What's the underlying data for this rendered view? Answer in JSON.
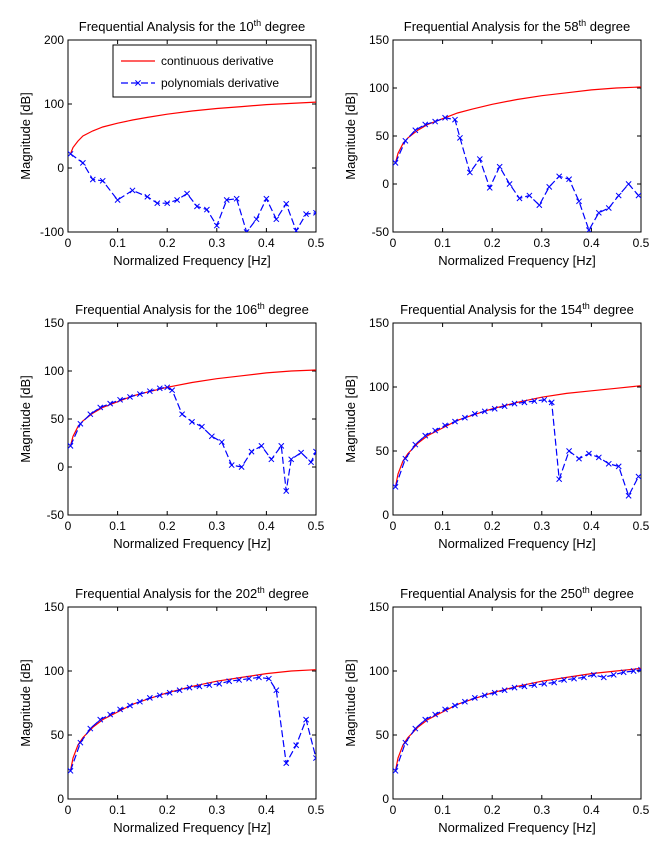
{
  "legend": {
    "entries": [
      {
        "label": "continuous derivative",
        "color": "#ff0000",
        "marker": "none"
      },
      {
        "label": "polynomials derivative",
        "color": "#0000ff",
        "marker": "x"
      }
    ],
    "placement": "top-right (first panel only)"
  },
  "chart_data": [
    {
      "type": "line",
      "title_prefix": "Frequential Analysis for the ",
      "title_degree": "10",
      "title_sup": "th",
      "title_suffix": " degree",
      "xlabel": "Normalized Frequency [Hz]",
      "ylabel": "Magnitude [dB]",
      "xlim": [
        0,
        0.5
      ],
      "ylim": [
        -100,
        200
      ],
      "xticks": [
        0,
        0.1,
        0.2,
        0.3,
        0.4,
        0.5
      ],
      "yticks": [
        -100,
        0,
        100,
        200
      ],
      "legend": true,
      "series": [
        {
          "name": "continuous derivative",
          "color": "#ff0000",
          "marker": "none",
          "x": [
            0.005,
            0.01,
            0.02,
            0.03,
            0.05,
            0.07,
            0.1,
            0.13,
            0.16,
            0.2,
            0.25,
            0.3,
            0.35,
            0.4,
            0.45,
            0.5
          ],
          "y": [
            22,
            32,
            42,
            50,
            58,
            64,
            70,
            75,
            79,
            84,
            89,
            93,
            96,
            99,
            101,
            103
          ]
        },
        {
          "name": "polynomials derivative",
          "color": "#0000ff",
          "marker": "x",
          "x": [
            0.005,
            0.03,
            0.05,
            0.07,
            0.1,
            0.13,
            0.16,
            0.18,
            0.2,
            0.22,
            0.24,
            0.26,
            0.28,
            0.3,
            0.32,
            0.34,
            0.36,
            0.38,
            0.4,
            0.42,
            0.44,
            0.46,
            0.48,
            0.5
          ],
          "y": [
            22,
            8,
            -18,
            -20,
            -50,
            -35,
            -45,
            -55,
            -55,
            -50,
            -40,
            -60,
            -65,
            -90,
            -50,
            -48,
            -100,
            -80,
            -48,
            -80,
            -56,
            -98,
            -72,
            -70
          ]
        }
      ]
    },
    {
      "type": "line",
      "title_prefix": "Frequential Analysis for the ",
      "title_degree": "58",
      "title_sup": "th",
      "title_suffix": " degree",
      "xlabel": "Normalized Frequency [Hz]",
      "ylabel": "Magnitude [dB]",
      "xlim": [
        0,
        0.5
      ],
      "ylim": [
        -50,
        150
      ],
      "xticks": [
        0,
        0.1,
        0.2,
        0.3,
        0.4,
        0.5
      ],
      "yticks": [
        -50,
        0,
        50,
        100,
        150
      ],
      "legend": false,
      "series": [
        {
          "name": "continuous derivative",
          "color": "#ff0000",
          "marker": "none",
          "x": [
            0.005,
            0.01,
            0.02,
            0.03,
            0.05,
            0.07,
            0.1,
            0.13,
            0.16,
            0.2,
            0.25,
            0.3,
            0.35,
            0.4,
            0.45,
            0.5
          ],
          "y": [
            22,
            32,
            42,
            48,
            56,
            62,
            68,
            74,
            78,
            83,
            88,
            92,
            95,
            98,
            100,
            101
          ]
        },
        {
          "name": "polynomials derivative",
          "color": "#0000ff",
          "marker": "x",
          "x": [
            0.005,
            0.025,
            0.045,
            0.065,
            0.085,
            0.105,
            0.125,
            0.135,
            0.155,
            0.175,
            0.195,
            0.215,
            0.235,
            0.255,
            0.275,
            0.295,
            0.315,
            0.335,
            0.355,
            0.375,
            0.395,
            0.415,
            0.435,
            0.455,
            0.475,
            0.495
          ],
          "y": [
            22,
            45,
            56,
            62,
            65,
            69,
            67,
            48,
            12,
            26,
            -4,
            18,
            0,
            -15,
            -12,
            -22,
            -3,
            8,
            5,
            -18,
            -48,
            -30,
            -25,
            -12,
            0,
            -12
          ]
        }
      ]
    },
    {
      "type": "line",
      "title_prefix": "Frequential Analysis for the ",
      "title_degree": "106",
      "title_sup": "th",
      "title_suffix": " degree",
      "xlabel": "Normalized Frequency [Hz]",
      "ylabel": "Magnitude [dB]",
      "xlim": [
        0,
        0.5
      ],
      "ylim": [
        -50,
        150
      ],
      "xticks": [
        0,
        0.1,
        0.2,
        0.3,
        0.4,
        0.5
      ],
      "yticks": [
        -50,
        0,
        50,
        100,
        150
      ],
      "legend": false,
      "series": [
        {
          "name": "continuous derivative",
          "color": "#ff0000",
          "marker": "none",
          "x": [
            0.005,
            0.01,
            0.02,
            0.03,
            0.05,
            0.07,
            0.1,
            0.13,
            0.16,
            0.2,
            0.25,
            0.3,
            0.35,
            0.4,
            0.45,
            0.5
          ],
          "y": [
            22,
            32,
            42,
            48,
            56,
            62,
            68,
            74,
            78,
            83,
            88,
            92,
            95,
            98,
            100,
            101
          ]
        },
        {
          "name": "polynomials derivative",
          "color": "#0000ff",
          "marker": "x",
          "x": [
            0.005,
            0.025,
            0.045,
            0.065,
            0.085,
            0.105,
            0.125,
            0.145,
            0.165,
            0.185,
            0.2,
            0.21,
            0.23,
            0.25,
            0.27,
            0.29,
            0.31,
            0.33,
            0.35,
            0.37,
            0.39,
            0.41,
            0.43,
            0.44,
            0.45,
            0.47,
            0.49,
            0.5
          ],
          "y": [
            22,
            45,
            55,
            62,
            66,
            70,
            73,
            76,
            79,
            82,
            83,
            80,
            55,
            47,
            42,
            32,
            26,
            2,
            0,
            16,
            22,
            8,
            22,
            -25,
            8,
            15,
            5,
            16
          ]
        }
      ]
    },
    {
      "type": "line",
      "title_prefix": "Frequential Analysis for the ",
      "title_degree": "154",
      "title_sup": "th",
      "title_suffix": " degree",
      "xlabel": "Normalized Frequency [Hz]",
      "ylabel": "Magnitude [dB]",
      "xlim": [
        0,
        0.5
      ],
      "ylim": [
        0,
        150
      ],
      "xticks": [
        0,
        0.1,
        0.2,
        0.3,
        0.4,
        0.5
      ],
      "yticks": [
        0,
        50,
        100,
        150
      ],
      "legend": false,
      "series": [
        {
          "name": "continuous derivative",
          "color": "#ff0000",
          "marker": "none",
          "x": [
            0.005,
            0.01,
            0.02,
            0.03,
            0.05,
            0.07,
            0.1,
            0.13,
            0.16,
            0.2,
            0.25,
            0.3,
            0.35,
            0.4,
            0.45,
            0.5
          ],
          "y": [
            22,
            32,
            42,
            48,
            56,
            62,
            68,
            74,
            78,
            83,
            88,
            92,
            95,
            97,
            99,
            101
          ]
        },
        {
          "name": "polynomials derivative",
          "color": "#0000ff",
          "marker": "x",
          "x": [
            0.005,
            0.025,
            0.045,
            0.065,
            0.085,
            0.105,
            0.125,
            0.145,
            0.165,
            0.185,
            0.205,
            0.225,
            0.245,
            0.265,
            0.285,
            0.305,
            0.32,
            0.335,
            0.355,
            0.375,
            0.395,
            0.415,
            0.435,
            0.455,
            0.475,
            0.495
          ],
          "y": [
            22,
            44,
            55,
            62,
            66,
            70,
            73,
            76,
            79,
            81,
            83,
            85,
            87,
            88,
            89,
            90,
            88,
            28,
            50,
            44,
            48,
            45,
            40,
            38,
            15,
            30
          ]
        }
      ]
    },
    {
      "type": "line",
      "title_prefix": "Frequential Analysis for the ",
      "title_degree": "202",
      "title_sup": "th",
      "title_suffix": " degree",
      "xlabel": "Normalized Frequency [Hz]",
      "ylabel": "Magnitude [dB]",
      "xlim": [
        0,
        0.5
      ],
      "ylim": [
        0,
        150
      ],
      "xticks": [
        0,
        0.1,
        0.2,
        0.3,
        0.4,
        0.5
      ],
      "yticks": [
        0,
        50,
        100,
        150
      ],
      "legend": false,
      "series": [
        {
          "name": "continuous derivative",
          "color": "#ff0000",
          "marker": "none",
          "x": [
            0.005,
            0.01,
            0.02,
            0.03,
            0.05,
            0.07,
            0.1,
            0.13,
            0.16,
            0.2,
            0.25,
            0.3,
            0.35,
            0.4,
            0.45,
            0.5
          ],
          "y": [
            22,
            32,
            42,
            48,
            56,
            62,
            68,
            74,
            78,
            83,
            88,
            92,
            95,
            98,
            100,
            101
          ]
        },
        {
          "name": "polynomials derivative",
          "color": "#0000ff",
          "marker": "x",
          "x": [
            0.005,
            0.025,
            0.045,
            0.065,
            0.085,
            0.105,
            0.125,
            0.145,
            0.165,
            0.185,
            0.205,
            0.225,
            0.245,
            0.265,
            0.285,
            0.305,
            0.325,
            0.345,
            0.365,
            0.385,
            0.405,
            0.42,
            0.44,
            0.46,
            0.48,
            0.5
          ],
          "y": [
            22,
            44,
            55,
            62,
            66,
            70,
            73,
            76,
            79,
            81,
            83,
            85,
            87,
            88,
            89,
            90,
            92,
            93,
            94,
            95,
            94,
            85,
            28,
            42,
            62,
            32
          ]
        }
      ]
    },
    {
      "type": "line",
      "title_prefix": "Frequential Analysis for the ",
      "title_degree": "250",
      "title_sup": "th",
      "title_suffix": " degree",
      "xlabel": "Normalized Frequency [Hz]",
      "ylabel": "Magnitude [dB]",
      "xlim": [
        0,
        0.5
      ],
      "ylim": [
        0,
        150
      ],
      "xticks": [
        0,
        0.1,
        0.2,
        0.3,
        0.4,
        0.5
      ],
      "yticks": [
        0,
        50,
        100,
        150
      ],
      "legend": false,
      "series": [
        {
          "name": "continuous derivative",
          "color": "#ff0000",
          "marker": "none",
          "x": [
            0.005,
            0.01,
            0.02,
            0.03,
            0.05,
            0.07,
            0.1,
            0.13,
            0.16,
            0.2,
            0.25,
            0.3,
            0.35,
            0.4,
            0.45,
            0.5
          ],
          "y": [
            22,
            32,
            42,
            48,
            56,
            62,
            68,
            74,
            78,
            83,
            88,
            92,
            95,
            98,
            100,
            102
          ]
        },
        {
          "name": "polynomials derivative",
          "color": "#0000ff",
          "marker": "x",
          "x": [
            0.005,
            0.025,
            0.045,
            0.065,
            0.085,
            0.105,
            0.125,
            0.145,
            0.165,
            0.185,
            0.205,
            0.225,
            0.245,
            0.265,
            0.285,
            0.305,
            0.325,
            0.345,
            0.365,
            0.385,
            0.405,
            0.425,
            0.445,
            0.465,
            0.485,
            0.5
          ],
          "y": [
            22,
            44,
            55,
            62,
            66,
            70,
            73,
            76,
            79,
            81,
            83,
            85,
            87,
            88,
            89,
            90,
            91,
            93,
            94,
            95,
            97,
            95,
            97,
            99,
            100,
            101
          ]
        }
      ]
    }
  ]
}
